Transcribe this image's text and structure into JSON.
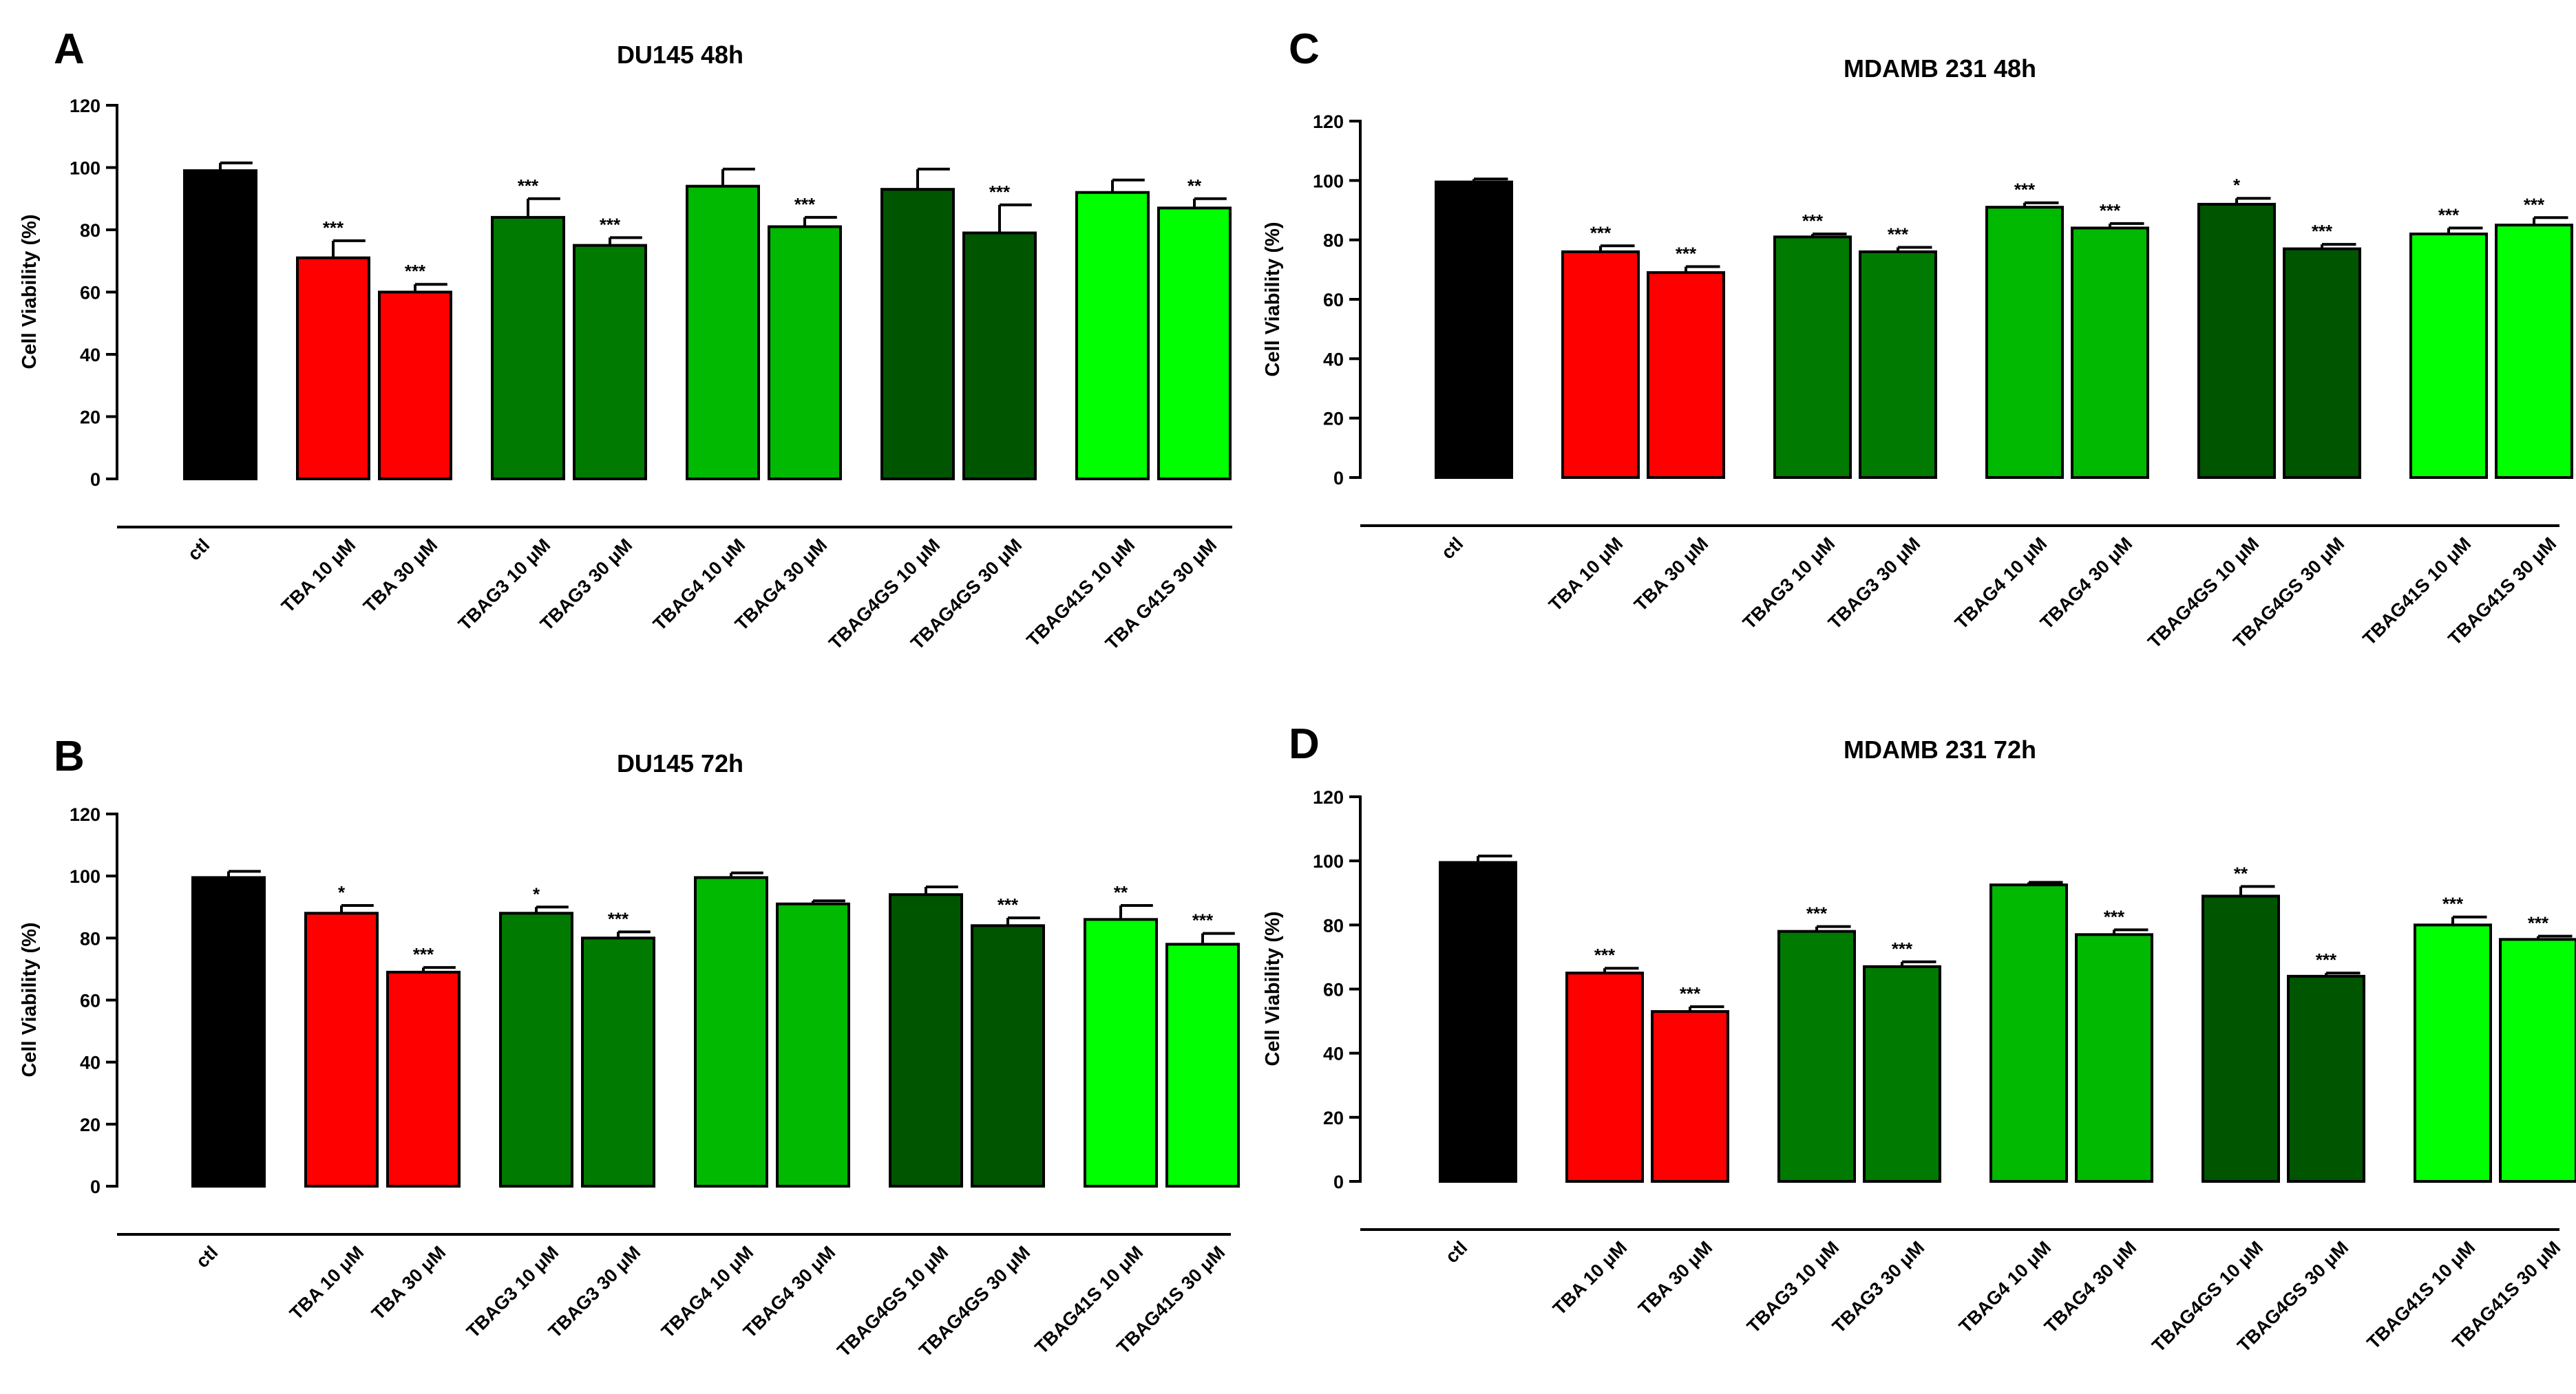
{
  "categories": [
    "ctl",
    "TBA 10 μM",
    "TBA 30 μM",
    "TBAG3 10 μM",
    "TBAG3 30 μM",
    "TBAG4 10 μM",
    "TBAG4 30 μM",
    "TBAG4GS 10 μM",
    "TBAG4GS 30 μM",
    "TBAG41S 10 μM",
    "TBAG41S 30 μM"
  ],
  "colors": {
    "ctl": "#000000",
    "TBA": "#ff0000",
    "TBAG3": "#007a00",
    "TBAG4": "#00b900",
    "TBAG4GS": "#005500",
    "TBAG41S": "#00ff00",
    "axis": "#000000"
  },
  "chart_data": [
    {
      "panel": "A",
      "type": "bar",
      "title": "DU145 48h",
      "xlabel": "",
      "ylabel": "Cell Viability (%)",
      "ylim": [
        0,
        120
      ],
      "yticks": [
        0,
        20,
        40,
        60,
        80,
        100,
        120
      ],
      "categories": [
        "ctl",
        "TBA 10 μM",
        "TBA 30 μM",
        "TBAG3 10 μM",
        "TBAG3 30 μM",
        "TBAG4 10 μM",
        "TBAG4 30 μM",
        "TBAG4GS 10 μM",
        "TBAG4GS 30 μM",
        "TBAG41S 10 μM",
        "TBA G41S 30 μM"
      ],
      "values": [
        99,
        71,
        60,
        84,
        75,
        94,
        81,
        93,
        79,
        92,
        87
      ],
      "errors": [
        2.5,
        5.5,
        2.5,
        6,
        2.5,
        5.5,
        3,
        6.5,
        9,
        4,
        3
      ],
      "significance": [
        "",
        "***",
        "***",
        "***",
        "***",
        "",
        "***",
        "",
        "***",
        "",
        "**"
      ]
    },
    {
      "panel": "B",
      "type": "bar",
      "title": "DU145 72h",
      "xlabel": "",
      "ylabel": "Cell Viability (%)",
      "ylim": [
        0,
        120
      ],
      "yticks": [
        0,
        20,
        40,
        60,
        80,
        100,
        120
      ],
      "categories": [
        "ctl",
        "TBA 10 μM",
        "TBA 30 μM",
        "TBAG3 10 μM",
        "TBAG3 30 μM",
        "TBAG4 10 μM",
        "TBAG4 30 μM",
        "TBAG4GS 10 μM",
        "TBAG4GS 30 μM",
        "TBAG41S 10 μM",
        "TBAG41S 30 μM"
      ],
      "values": [
        99.5,
        88,
        69,
        88,
        80,
        99.5,
        91,
        94,
        84,
        86,
        78
      ],
      "errors": [
        2,
        2.5,
        1.5,
        2,
        2,
        1.5,
        1,
        2.5,
        2.5,
        4.5,
        3.5
      ],
      "significance": [
        "",
        "*",
        "***",
        "*",
        "***",
        "",
        "",
        "",
        "***",
        "**",
        "***"
      ]
    },
    {
      "panel": "C",
      "type": "bar",
      "title": "MDAMB 231 48h",
      "xlabel": "",
      "ylabel": "Cell Viability (%)",
      "ylim": [
        0,
        120
      ],
      "yticks": [
        0,
        20,
        40,
        60,
        80,
        100,
        120
      ],
      "categories": [
        "ctl",
        "TBA 10 μM",
        "TBA 30 μM",
        "TBAG3 10 μM",
        "TBAG3 30 μM",
        "TBAG4 10 μM",
        "TBAG4 30 μM",
        "TBAG4GS 10 μM",
        "TBAG4GS 30 μM",
        "TBAG41S 10 μM",
        "TBAG41S 30 μM"
      ],
      "values": [
        99.5,
        76,
        69,
        81,
        76,
        91,
        84,
        92,
        77,
        82,
        85
      ],
      "errors": [
        1,
        2,
        2,
        1,
        1.5,
        1.5,
        1.5,
        2,
        1.5,
        2,
        2.5
      ],
      "significance": [
        "",
        "***",
        "***",
        "***",
        "***",
        "***",
        "***",
        "*",
        "***",
        "***",
        "***"
      ]
    },
    {
      "panel": "D",
      "type": "bar",
      "title": "MDAMB 231 72h",
      "xlabel": "",
      "ylabel": "Cell Viability (%)",
      "ylim": [
        0,
        120
      ],
      "yticks": [
        0,
        20,
        40,
        60,
        80,
        100,
        120
      ],
      "categories": [
        "ctl",
        "TBA 10 μM",
        "TBA 30 μM",
        "TBAG3 10 μM",
        "TBAG3 30 μM",
        "TBAG4 10 μM",
        "TBAG4 30 μM",
        "TBAG4GS 10 μM",
        "TBAG4GS 30 μM",
        "TBAG41S 10 μM",
        "TBAG41S 30 μM"
      ],
      "values": [
        99.5,
        65,
        53,
        78,
        67,
        92.5,
        77,
        89,
        64,
        80,
        75.5
      ],
      "errors": [
        2,
        1.5,
        1.5,
        1.5,
        1.5,
        0.8,
        1.5,
        3,
        1,
        2.5,
        1
      ],
      "significance": [
        "",
        "***",
        "***",
        "***",
        "***",
        "",
        "***",
        "**",
        "***",
        "***",
        "***"
      ]
    }
  ]
}
